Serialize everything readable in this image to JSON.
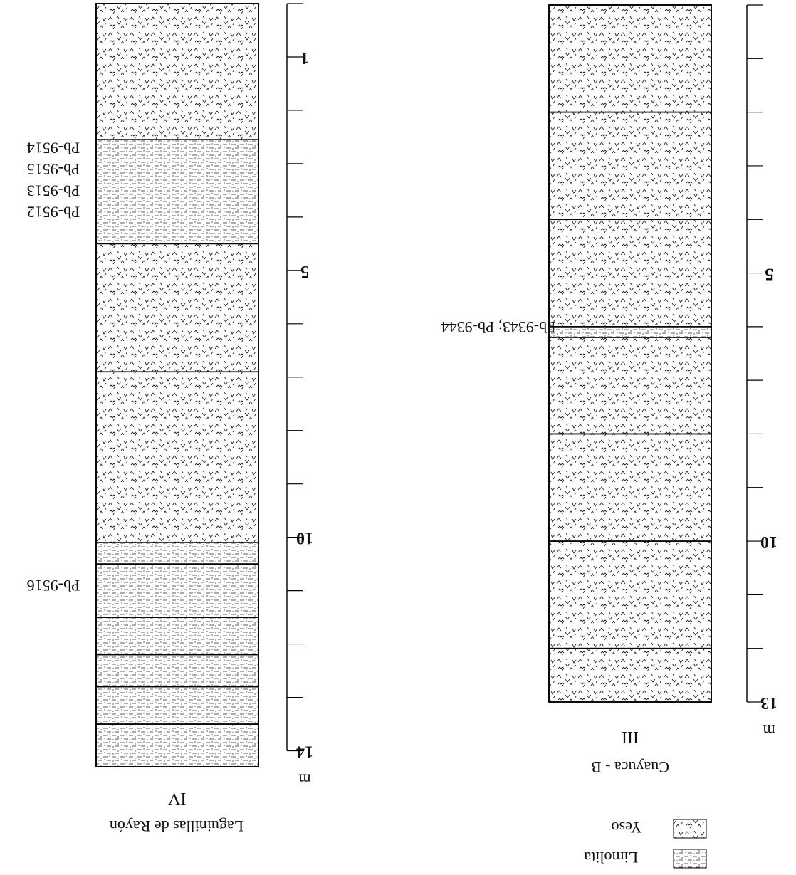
{
  "columns": [
    {
      "id": "IV",
      "name": "Laguinillas de Rayón",
      "number": "IV",
      "scale": {
        "max_m": 14,
        "unit": "m",
        "labels": [
          "1",
          "5",
          "10",
          "14"
        ]
      },
      "layers": [
        {
          "from": 0.0,
          "to": 2.55,
          "lith": "yeso"
        },
        {
          "from": 2.55,
          "to": 4.5,
          "lith": "limolita"
        },
        {
          "from": 4.5,
          "to": 6.9,
          "lith": "yeso"
        },
        {
          "from": 6.9,
          "to": 10.1,
          "lith": "yeso"
        },
        {
          "from": 10.1,
          "to": 10.5,
          "lith": "limolita"
        },
        {
          "from": 10.5,
          "to": 11.5,
          "lith": "limolita"
        },
        {
          "from": 11.5,
          "to": 12.2,
          "lith": "limolita"
        },
        {
          "from": 12.2,
          "to": 12.8,
          "lith": "limolita"
        },
        {
          "from": 12.8,
          "to": 13.5,
          "lith": "limolita"
        },
        {
          "from": 13.5,
          "to": 14.3,
          "lith": "limolita"
        }
      ],
      "samples": [
        {
          "label": "Pb-9514",
          "depth": 2.7
        },
        {
          "label": "Pb-9515",
          "depth": 3.1
        },
        {
          "label": "Pb-9513",
          "depth": 3.5
        },
        {
          "label": "Pb-9512",
          "depth": 3.9
        },
        {
          "label": "Pb-9516",
          "depth": 10.9
        }
      ]
    },
    {
      "id": "III",
      "name": "Cuayuca - B",
      "number": "III",
      "scale": {
        "max_m": 13,
        "unit": "m",
        "labels": [
          "5",
          "10",
          "13"
        ]
      },
      "layers": [
        {
          "from": 0.0,
          "to": 2.0,
          "lith": "yeso"
        },
        {
          "from": 2.0,
          "to": 4.0,
          "lith": "yeso"
        },
        {
          "from": 4.0,
          "to": 6.0,
          "lith": "yeso"
        },
        {
          "from": 6.0,
          "to": 6.2,
          "lith": "limolita"
        },
        {
          "from": 6.2,
          "to": 8.0,
          "lith": "yeso"
        },
        {
          "from": 8.0,
          "to": 10.0,
          "lith": "yeso"
        },
        {
          "from": 10.0,
          "to": 12.0,
          "lith": "yeso"
        },
        {
          "from": 12.0,
          "to": 13.0,
          "lith": "yeso"
        }
      ],
      "samples": [
        {
          "label": "Pb-9343; Pb-9344",
          "depth": 6.0
        }
      ]
    }
  ],
  "legend": [
    {
      "label": "Yeso",
      "lith": "yeso"
    },
    {
      "label": "Limolita",
      "lith": "limolita"
    }
  ]
}
